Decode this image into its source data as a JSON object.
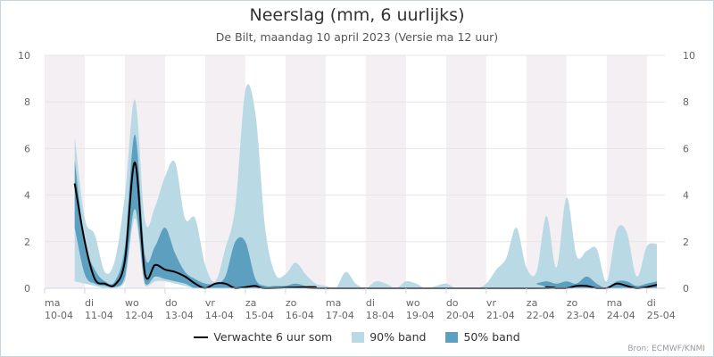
{
  "header": {
    "title": "Neerslag (mm, 6 uurlijks)",
    "subtitle": "De Bilt, maandag 10 april 2023 (Versie ma 12 uur)"
  },
  "credits": "Bron: ECMWF/KNMI",
  "legend": {
    "line_label": "Verwachte 6 uur som",
    "band90_label": "90% band",
    "band50_label": "50% band"
  },
  "colors": {
    "line": "#000000",
    "band90": "#b9d9e4",
    "band50": "#5d9fbf",
    "weekend_shade": "#f3eff3"
  },
  "chart_data": {
    "type": "area",
    "ylim": [
      0,
      10
    ],
    "yticks": [
      0,
      2,
      4,
      6,
      8,
      10
    ],
    "grid": true,
    "legend_position": "bottom",
    "day_labels": [
      {
        "day": "ma",
        "date": "10-04"
      },
      {
        "day": "di",
        "date": "11-04"
      },
      {
        "day": "wo",
        "date": "12-04"
      },
      {
        "day": "do",
        "date": "13-04"
      },
      {
        "day": "vr",
        "date": "14-04"
      },
      {
        "day": "za",
        "date": "15-04"
      },
      {
        "day": "zo",
        "date": "16-04"
      },
      {
        "day": "ma",
        "date": "17-04"
      },
      {
        "day": "di",
        "date": "18-04"
      },
      {
        "day": "wo",
        "date": "19-04"
      },
      {
        "day": "do",
        "date": "20-04"
      },
      {
        "day": "vr",
        "date": "21-04"
      },
      {
        "day": "za",
        "date": "22-04"
      },
      {
        "day": "zo",
        "date": "23-04"
      },
      {
        "day": "ma",
        "date": "24-04"
      },
      {
        "day": "di",
        "date": "25-04"
      }
    ],
    "series": [
      {
        "name": "Verwachte 6 uur som",
        "kind": "line",
        "points": [
          [
            0.75,
            4.5
          ],
          [
            1.0,
            2.0
          ],
          [
            1.25,
            0.4
          ],
          [
            1.5,
            0.2
          ],
          [
            1.75,
            0.15
          ],
          [
            2.0,
            1.2
          ],
          [
            2.25,
            5.4
          ],
          [
            2.5,
            0.6
          ],
          [
            2.75,
            1.0
          ],
          [
            3.0,
            0.8
          ],
          [
            3.25,
            0.7
          ],
          [
            3.5,
            0.5
          ],
          [
            3.75,
            0.2
          ],
          [
            4.0,
            0.0
          ],
          [
            4.25,
            0.2
          ],
          [
            4.5,
            0.2
          ],
          [
            4.75,
            0.0
          ],
          [
            5.0,
            0.05
          ],
          [
            5.25,
            0.1
          ],
          [
            5.5,
            0.0
          ],
          [
            6.5,
            0.05
          ],
          [
            6.75,
            0.05
          ],
          [
            7.0,
            0.0
          ],
          [
            12.25,
            0.0
          ],
          [
            12.5,
            0.05
          ],
          [
            12.75,
            0.0
          ],
          [
            13.0,
            0.0
          ],
          [
            13.25,
            0.1
          ],
          [
            13.5,
            0.1
          ],
          [
            13.75,
            0.0
          ],
          [
            14.0,
            0.0
          ],
          [
            14.25,
            0.2
          ],
          [
            14.5,
            0.1
          ],
          [
            14.75,
            0.0
          ],
          [
            15.0,
            0.05
          ],
          [
            15.25,
            0.15
          ]
        ]
      },
      {
        "name": "90% band",
        "kind": "band",
        "points": [
          [
            0.75,
            0.3,
            6.5
          ],
          [
            1.0,
            0.2,
            3.0
          ],
          [
            1.25,
            0.1,
            2.3
          ],
          [
            1.5,
            0.0,
            0.7
          ],
          [
            1.75,
            0.0,
            1.2
          ],
          [
            2.0,
            0.3,
            4.0
          ],
          [
            2.25,
            3.0,
            8.1
          ],
          [
            2.5,
            0.1,
            2.9
          ],
          [
            2.75,
            0.3,
            3.5
          ],
          [
            3.0,
            0.3,
            4.8
          ],
          [
            3.25,
            0.2,
            5.4
          ],
          [
            3.5,
            0.1,
            3.0
          ],
          [
            3.75,
            0.0,
            3.0
          ],
          [
            4.0,
            0.0,
            1.0
          ],
          [
            4.25,
            0.0,
            0.3
          ],
          [
            4.5,
            0.0,
            1.7
          ],
          [
            4.75,
            0.0,
            3.5
          ],
          [
            5.0,
            0.0,
            8.5
          ],
          [
            5.25,
            0.0,
            7.5
          ],
          [
            5.5,
            0.0,
            2.5
          ],
          [
            5.75,
            0.0,
            0.6
          ],
          [
            6.0,
            0.0,
            0.6
          ],
          [
            6.25,
            0.0,
            1.1
          ],
          [
            6.5,
            0.0,
            0.6
          ],
          [
            6.75,
            0.0,
            0.2
          ],
          [
            7.0,
            0.0,
            0.1
          ],
          [
            7.25,
            0.0,
            0.0
          ],
          [
            7.5,
            0.0,
            0.7
          ],
          [
            7.75,
            0.0,
            0.2
          ],
          [
            8.0,
            0.0,
            0.0
          ],
          [
            8.25,
            0.0,
            0.3
          ],
          [
            8.5,
            0.0,
            0.2
          ],
          [
            8.75,
            0.0,
            0.0
          ],
          [
            9.0,
            0.0,
            0.3
          ],
          [
            9.25,
            0.0,
            0.2
          ],
          [
            9.5,
            0.0,
            0.0
          ],
          [
            9.75,
            0.0,
            0.1
          ],
          [
            10.0,
            0.0,
            0.2
          ],
          [
            10.25,
            0.0,
            0.0
          ],
          [
            10.5,
            0.0,
            0.0
          ],
          [
            10.75,
            0.0,
            0.0
          ],
          [
            11.0,
            0.0,
            0.2
          ],
          [
            11.25,
            0.0,
            0.8
          ],
          [
            11.5,
            0.0,
            1.3
          ],
          [
            11.75,
            0.0,
            2.6
          ],
          [
            12.0,
            0.0,
            0.9
          ],
          [
            12.25,
            0.0,
            0.7
          ],
          [
            12.5,
            0.0,
            3.1
          ],
          [
            12.75,
            0.0,
            0.9
          ],
          [
            13.0,
            0.0,
            3.9
          ],
          [
            13.25,
            0.0,
            1.4
          ],
          [
            13.5,
            0.0,
            1.6
          ],
          [
            13.75,
            0.0,
            1.7
          ],
          [
            14.0,
            0.0,
            0.3
          ],
          [
            14.25,
            0.0,
            2.5
          ],
          [
            14.5,
            0.0,
            2.4
          ],
          [
            14.75,
            0.0,
            0.5
          ],
          [
            15.0,
            0.0,
            1.8
          ],
          [
            15.25,
            0.0,
            1.9
          ]
        ]
      },
      {
        "name": "50% band",
        "kind": "band",
        "points": [
          [
            0.75,
            2.6,
            5.5
          ],
          [
            1.0,
            0.6,
            2.0
          ],
          [
            1.25,
            0.2,
            0.8
          ],
          [
            1.5,
            0.1,
            0.3
          ],
          [
            1.75,
            0.05,
            0.3
          ],
          [
            2.0,
            0.5,
            1.8
          ],
          [
            2.25,
            3.4,
            6.6
          ],
          [
            2.5,
            0.2,
            1.4
          ],
          [
            2.75,
            0.5,
            1.8
          ],
          [
            3.0,
            0.4,
            2.6
          ],
          [
            3.25,
            0.3,
            1.5
          ],
          [
            3.5,
            0.2,
            0.7
          ],
          [
            3.75,
            0.0,
            0.4
          ],
          [
            4.0,
            0.0,
            0.2
          ],
          [
            4.25,
            0.0,
            0.2
          ],
          [
            4.5,
            0.0,
            0.5
          ],
          [
            4.75,
            0.0,
            2.0
          ],
          [
            5.0,
            0.0,
            2.0
          ],
          [
            5.25,
            0.0,
            0.4
          ],
          [
            5.5,
            0.0,
            0.1
          ],
          [
            5.75,
            0.0,
            0.1
          ],
          [
            6.0,
            0.0,
            0.1
          ],
          [
            6.25,
            0.0,
            0.2
          ],
          [
            6.5,
            0.0,
            0.1
          ],
          [
            6.75,
            0.0,
            0.0
          ],
          [
            12.0,
            0.0,
            0.0
          ],
          [
            12.25,
            0.0,
            0.2
          ],
          [
            12.5,
            0.0,
            0.3
          ],
          [
            12.75,
            0.0,
            0.2
          ],
          [
            13.0,
            0.0,
            0.3
          ],
          [
            13.25,
            0.0,
            0.2
          ],
          [
            13.5,
            0.0,
            0.5
          ],
          [
            13.75,
            0.0,
            0.2
          ],
          [
            14.0,
            0.0,
            0.0
          ],
          [
            14.25,
            0.0,
            0.3
          ],
          [
            14.5,
            0.0,
            0.3
          ],
          [
            14.75,
            0.0,
            0.1
          ],
          [
            15.0,
            0.0,
            0.2
          ],
          [
            15.25,
            0.0,
            0.3
          ]
        ]
      }
    ]
  }
}
